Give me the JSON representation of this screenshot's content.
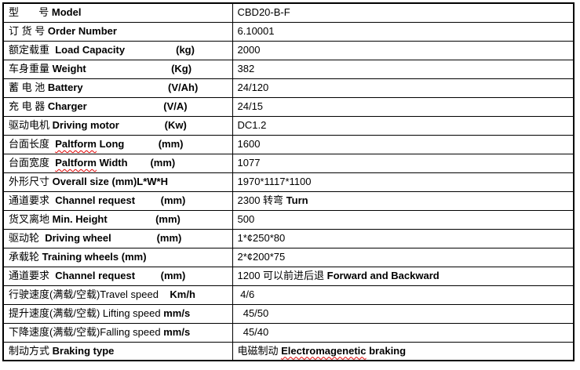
{
  "colors": {
    "background": "#ffffff",
    "table_border": "#000000",
    "text": "#000000",
    "spellcheck_underline": "#e00000"
  },
  "table": {
    "rows": [
      {
        "label": [
          {
            "t": "型       号 "
          },
          {
            "t": "Model",
            "b": true
          }
        ],
        "value": [
          {
            "t": "CBD20-B-F"
          }
        ]
      },
      {
        "label": [
          {
            "t": "订 货 号 "
          },
          {
            "t": "Order Number",
            "b": true
          }
        ],
        "value": [
          {
            "t": "6.10001"
          }
        ]
      },
      {
        "label": [
          {
            "t": "额定载重  "
          },
          {
            "t": "Load Capacity",
            "b": true
          },
          {
            "t": "                  "
          },
          {
            "t": "(kg)",
            "b": true
          }
        ],
        "value": [
          {
            "t": "2000"
          }
        ]
      },
      {
        "label": [
          {
            "t": "车身重量 "
          },
          {
            "t": "Weight",
            "b": true
          },
          {
            "t": "                              "
          },
          {
            "t": "(Kg)",
            "b": true
          }
        ],
        "value": [
          {
            "t": "382"
          }
        ]
      },
      {
        "label": [
          {
            "t": "蓄 电 池 "
          },
          {
            "t": "Battery",
            "b": true
          },
          {
            "t": "                              "
          },
          {
            "t": "(V/Ah)",
            "b": true
          }
        ],
        "value": [
          {
            "t": "24/120"
          }
        ]
      },
      {
        "label": [
          {
            "t": "充 电 器 "
          },
          {
            "t": "Charger",
            "b": true
          },
          {
            "t": "                           "
          },
          {
            "t": "(V/A)",
            "b": true
          }
        ],
        "value": [
          {
            "t": "24/15"
          }
        ]
      },
      {
        "label": [
          {
            "t": "驱动电机 "
          },
          {
            "t": "Driving motor",
            "b": true
          },
          {
            "t": "                "
          },
          {
            "t": "(Kw)",
            "b": true
          }
        ],
        "value": [
          {
            "t": "DC1.2"
          }
        ]
      },
      {
        "label": [
          {
            "t": "台面长度  "
          },
          {
            "t": "Paltform",
            "b": true,
            "sq": true
          },
          {
            "t": " Long",
            "b": true
          },
          {
            "t": "            "
          },
          {
            "t": "(mm)",
            "b": true
          }
        ],
        "value": [
          {
            "t": "1600"
          }
        ]
      },
      {
        "label": [
          {
            "t": "台面宽度  "
          },
          {
            "t": "Paltform",
            "b": true,
            "sq": true
          },
          {
            "t": " Width",
            "b": true
          },
          {
            "t": "        "
          },
          {
            "t": "(mm)",
            "b": true
          }
        ],
        "value": [
          {
            "t": "1077"
          }
        ]
      },
      {
        "label": [
          {
            "t": "外形尺寸 "
          },
          {
            "t": "Overall size (mm)L*W*H",
            "b": true
          }
        ],
        "value": [
          {
            "t": "1970*1117*1100"
          }
        ]
      },
      {
        "label": [
          {
            "t": "通道要求  "
          },
          {
            "t": "Channel request",
            "b": true
          },
          {
            "t": "         "
          },
          {
            "t": "(mm)",
            "b": true
          }
        ],
        "value": [
          {
            "t": "2300 转弯 "
          },
          {
            "t": "Turn",
            "b": true
          }
        ]
      },
      {
        "label": [
          {
            "t": "货叉离地 "
          },
          {
            "t": "Min. Height",
            "b": true
          },
          {
            "t": "                 "
          },
          {
            "t": "(mm)",
            "b": true
          }
        ],
        "value": [
          {
            "t": "500"
          }
        ]
      },
      {
        "label": [
          {
            "t": "驱动轮  "
          },
          {
            "t": "Driving wheel",
            "b": true
          },
          {
            "t": "                "
          },
          {
            "t": "(mm)",
            "b": true
          }
        ],
        "value": [
          {
            "t": "1*¢250*80"
          }
        ]
      },
      {
        "label": [
          {
            "t": "承载轮 "
          },
          {
            "t": "Training wheels (mm)",
            "b": true
          }
        ],
        "value": [
          {
            "t": "2*¢200*75"
          }
        ]
      },
      {
        "label": [
          {
            "t": "通道要求  "
          },
          {
            "t": "Channel request",
            "b": true
          },
          {
            "t": "         "
          },
          {
            "t": "(mm)",
            "b": true
          }
        ],
        "value": [
          {
            "t": "1200 可以前进后退 "
          },
          {
            "t": "Forward and Backward",
            "b": true
          }
        ]
      },
      {
        "label": [
          {
            "t": "行驶速度(满载/空载)Travel speed    "
          },
          {
            "t": "Km/h",
            "b": true
          }
        ],
        "value": [
          {
            "t": " 4/6"
          }
        ]
      },
      {
        "label": [
          {
            "t": "提升速度(满载/空载) Lifting speed "
          },
          {
            "t": "mm/s",
            "b": true
          }
        ],
        "value": [
          {
            "t": "  45/50"
          }
        ]
      },
      {
        "label": [
          {
            "t": "下降速度(满载/空载)Falling speed "
          },
          {
            "t": "mm/s",
            "b": true
          }
        ],
        "value": [
          {
            "t": "  45/40"
          }
        ]
      },
      {
        "label": [
          {
            "t": "制动方式 "
          },
          {
            "t": "Braking type",
            "b": true
          }
        ],
        "value": [
          {
            "t": "电磁制动 "
          },
          {
            "t": "Electromagenetic",
            "b": true,
            "sq": true
          },
          {
            "t": " braking",
            "b": true
          }
        ]
      }
    ]
  }
}
